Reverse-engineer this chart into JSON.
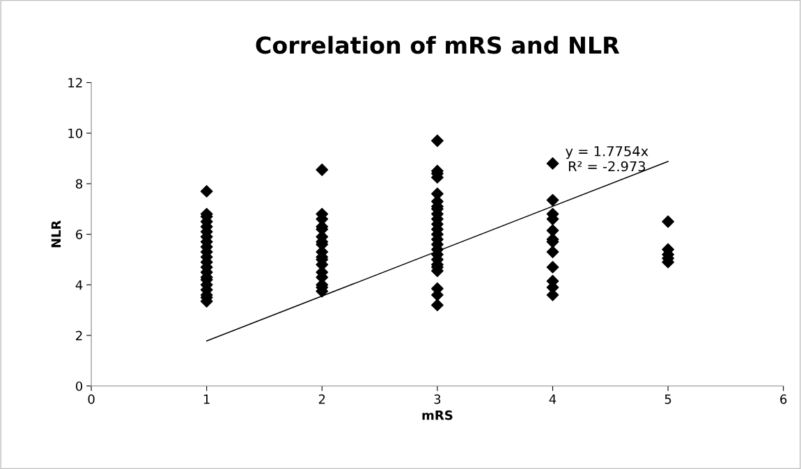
{
  "chart_data": {
    "type": "scatter",
    "title": "Correlation of mRS and NLR",
    "xlabel": "mRS",
    "ylabel": "NLR",
    "xlim": [
      0,
      6
    ],
    "xticks": [
      0,
      1,
      2,
      3,
      4,
      5,
      6
    ],
    "ylim": [
      0,
      12
    ],
    "yticks": [
      0,
      2,
      4,
      6,
      8,
      10,
      12
    ],
    "grid": false,
    "legend": false,
    "marker": "diamond",
    "series": [
      {
        "color": "#000000",
        "x": [
          1,
          1,
          1,
          1,
          1,
          1,
          1,
          1,
          1,
          1,
          1,
          1,
          1,
          1,
          1,
          1,
          1,
          1,
          1,
          1,
          1,
          2,
          2,
          2,
          2,
          2,
          2,
          2,
          2,
          2,
          2,
          2,
          2,
          2,
          2,
          2,
          2,
          2,
          3,
          3,
          3,
          3,
          3,
          3,
          3,
          3,
          3,
          3,
          3,
          3,
          3,
          3,
          3,
          3,
          3,
          3,
          3,
          3,
          3,
          3,
          3,
          3,
          4,
          4,
          4,
          4,
          4,
          4,
          4,
          4,
          4,
          4,
          4,
          4,
          5,
          5,
          5,
          5,
          5
        ],
        "values": [
          7.7,
          6.8,
          6.7,
          6.5,
          6.3,
          6.1,
          5.9,
          5.7,
          5.5,
          5.3,
          5.1,
          4.9,
          4.7,
          4.5,
          4.3,
          4.2,
          4.0,
          3.8,
          3.6,
          3.5,
          3.35,
          8.55,
          6.8,
          6.6,
          6.3,
          6.2,
          5.9,
          5.7,
          5.6,
          5.3,
          5.1,
          5.0,
          4.8,
          4.5,
          4.3,
          4.0,
          3.9,
          3.75,
          9.7,
          8.5,
          8.4,
          8.25,
          7.6,
          7.3,
          7.1,
          7.0,
          6.8,
          6.6,
          6.4,
          6.2,
          6.0,
          5.8,
          5.6,
          5.4,
          5.2,
          5.0,
          4.8,
          4.7,
          4.55,
          3.85,
          3.6,
          3.2,
          8.8,
          7.35,
          6.8,
          6.6,
          6.15,
          5.8,
          5.7,
          5.3,
          4.7,
          4.15,
          3.9,
          3.6,
          6.5,
          5.4,
          5.2,
          5.05,
          4.9
        ]
      },
      {
        "type": "line",
        "color": "#000000",
        "marker": "none",
        "line_style": "solid",
        "x": [
          1,
          5
        ],
        "values": [
          1.78,
          8.88
        ]
      }
    ],
    "annotations": [
      "y = 1.7754x\nR² = -2.973"
    ]
  }
}
